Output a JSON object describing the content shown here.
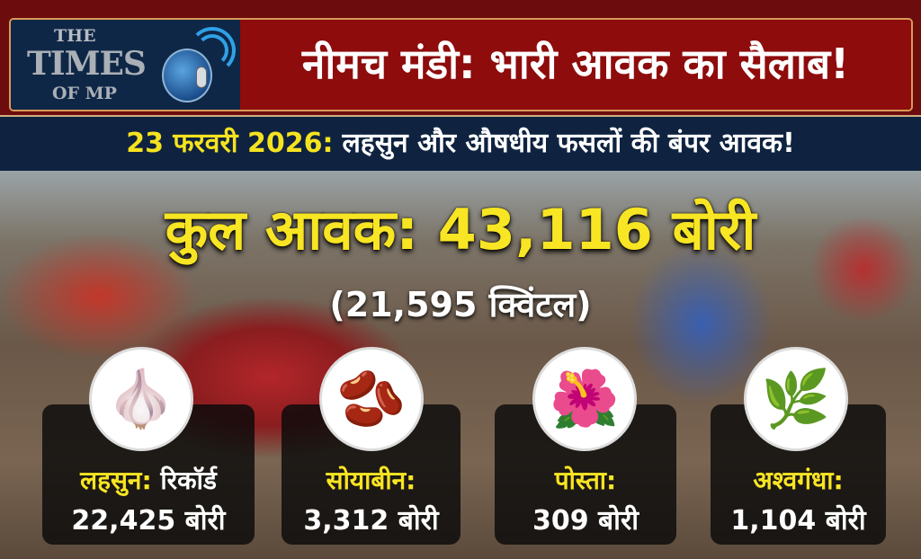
{
  "logo": {
    "line1": "THE",
    "line2": "TIMES",
    "line3": "OF MP"
  },
  "header": {
    "title": "नीमच मंडी: भारी आवक का सैलाब!"
  },
  "subheader": {
    "date": "23 फरवरी 2026:",
    "text": "लहसुन और औषधीय फसलों की बंपर आवक!"
  },
  "total": {
    "label": "कुल आवक: 43,116 बोरी",
    "quintal": "(21,595 क्विंटल)"
  },
  "crops": [
    {
      "name": "लहसुन:",
      "extra": "रिकॉर्ड",
      "value": "22,425 बोरी",
      "icon": "garlic-icon",
      "glyph": "🧄"
    },
    {
      "name": "सोयाबीन:",
      "extra": "",
      "value": "3,312 बोरी",
      "icon": "soybean-icon",
      "glyph": "🫘"
    },
    {
      "name": "पोस्ता:",
      "extra": "",
      "value": "309 बोरी",
      "icon": "poppy-icon",
      "glyph": "🌺"
    },
    {
      "name": "अश्वगंधा:",
      "extra": "",
      "value": "1,104 बोरी",
      "icon": "ashwagandha-root-icon",
      "glyph": "🌿"
    }
  ],
  "colors": {
    "accent_yellow": "#f8e523",
    "header_red": "#8e0c0c",
    "navy": "#0f2340"
  }
}
